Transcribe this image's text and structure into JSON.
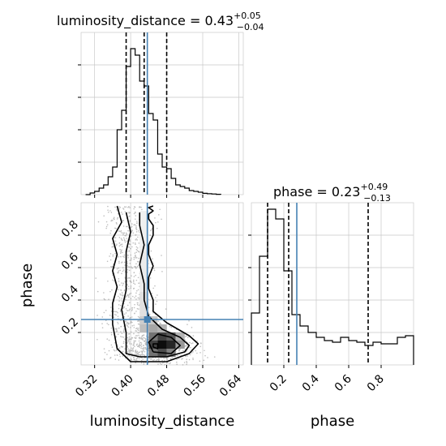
{
  "chart_data": {
    "type": "corner",
    "parameters": [
      "luminosity_distance",
      "phase"
    ],
    "truth_color": "#4682b4",
    "panels": [
      {
        "id": "hist-luminosity_distance",
        "type": "histogram",
        "title": {
          "prefix": "luminosity_distance = ",
          "value": "0.43",
          "plus": "+0.05",
          "minus": "−0.04"
        },
        "xlim": [
          0.29,
          0.65
        ],
        "ylim": [
          0,
          1.0
        ],
        "bin_edges": [
          0.3,
          0.31,
          0.32,
          0.33,
          0.34,
          0.35,
          0.36,
          0.37,
          0.38,
          0.39,
          0.4,
          0.41,
          0.42,
          0.43,
          0.44,
          0.45,
          0.46,
          0.47,
          0.48,
          0.49,
          0.5,
          0.51,
          0.52,
          0.53,
          0.54,
          0.55,
          0.56,
          0.57,
          0.58,
          0.59,
          0.6
        ],
        "counts": [
          0,
          0.01,
          0.02,
          0.04,
          0.06,
          0.11,
          0.17,
          0.4,
          0.52,
          0.79,
          0.9,
          0.86,
          0.7,
          0.67,
          0.5,
          0.46,
          0.25,
          0.17,
          0.16,
          0.1,
          0.06,
          0.05,
          0.04,
          0.025,
          0.02,
          0.015,
          0.008,
          0.006,
          0.004,
          0.002
        ],
        "quantiles": [
          0.39,
          0.43,
          0.48
        ],
        "truth": 0.437,
        "yticks": [
          0.2,
          0.4,
          0.6,
          0.8
        ]
      },
      {
        "id": "hist-phase",
        "type": "histogram",
        "title": {
          "prefix": "phase = ",
          "value": "0.23",
          "plus": "+0.49",
          "minus": "−0.13"
        },
        "xlim": [
          0.0,
          1.0
        ],
        "ylim": [
          0,
          1.0
        ],
        "bin_edges": [
          0.0,
          0.05,
          0.1,
          0.15,
          0.2,
          0.25,
          0.3,
          0.35,
          0.4,
          0.45,
          0.5,
          0.55,
          0.6,
          0.65,
          0.7,
          0.75,
          0.8,
          0.85,
          0.9,
          0.95,
          1.0
        ],
        "counts": [
          0.32,
          0.67,
          0.96,
          0.9,
          0.58,
          0.31,
          0.24,
          0.2,
          0.17,
          0.15,
          0.14,
          0.17,
          0.15,
          0.14,
          0.12,
          0.14,
          0.13,
          0.13,
          0.17,
          0.18
        ],
        "quantiles": [
          0.1,
          0.23,
          0.72
        ],
        "truth": 0.28,
        "yticks": [
          0.2,
          0.4,
          0.6,
          0.8
        ],
        "xticks": [
          0.2,
          0.4,
          0.6,
          0.8
        ],
        "xticklabels": [
          "0.2",
          "0.4",
          "0.6",
          "0.8"
        ],
        "xlabel": "phase"
      },
      {
        "id": "joint-luminosity_distance-phase",
        "type": "2d-density",
        "xlim": [
          0.29,
          0.65
        ],
        "ylim": [
          0.0,
          1.0
        ],
        "xticks": [
          0.32,
          0.4,
          0.48,
          0.56,
          0.64
        ],
        "xticklabels": [
          "0.32",
          "0.40",
          "0.48",
          "0.56",
          "0.64"
        ],
        "yticks": [
          0.2,
          0.4,
          0.6,
          0.8
        ],
        "yticklabels": [
          "0.2",
          "0.4",
          "0.6",
          "0.8"
        ],
        "xlabel": "luminosity_distance",
        "ylabel": "phase",
        "truth": [
          0.437,
          0.28
        ],
        "density_cells": [
          {
            "x": [
              0.44,
              0.46
            ],
            "y": [
              0.05,
              0.1
            ],
            "shade": 0.55
          },
          {
            "x": [
              0.46,
              0.48
            ],
            "y": [
              0.05,
              0.1
            ],
            "shade": 0.7
          },
          {
            "x": [
              0.48,
              0.5
            ],
            "y": [
              0.05,
              0.1
            ],
            "shade": 0.5
          },
          {
            "x": [
              0.44,
              0.46
            ],
            "y": [
              0.1,
              0.15
            ],
            "shade": 0.75
          },
          {
            "x": [
              0.46,
              0.48
            ],
            "y": [
              0.1,
              0.15
            ],
            "shade": 0.95
          },
          {
            "x": [
              0.48,
              0.5
            ],
            "y": [
              0.1,
              0.15
            ],
            "shade": 0.85
          },
          {
            "x": [
              0.5,
              0.52
            ],
            "y": [
              0.1,
              0.15
            ],
            "shade": 0.4
          },
          {
            "x": [
              0.44,
              0.46
            ],
            "y": [
              0.15,
              0.2
            ],
            "shade": 0.55
          },
          {
            "x": [
              0.46,
              0.48
            ],
            "y": [
              0.15,
              0.2
            ],
            "shade": 0.75
          },
          {
            "x": [
              0.48,
              0.5
            ],
            "y": [
              0.15,
              0.2
            ],
            "shade": 0.65
          },
          {
            "x": [
              0.5,
              0.52
            ],
            "y": [
              0.15,
              0.2
            ],
            "shade": 0.3
          },
          {
            "x": [
              0.42,
              0.44
            ],
            "y": [
              0.2,
              0.25
            ],
            "shade": 0.25
          },
          {
            "x": [
              0.44,
              0.46
            ],
            "y": [
              0.2,
              0.25
            ],
            "shade": 0.35
          },
          {
            "x": [
              0.46,
              0.48
            ],
            "y": [
              0.2,
              0.25
            ],
            "shade": 0.3
          },
          {
            "x": [
              0.42,
              0.44
            ],
            "y": [
              0.25,
              0.3
            ],
            "shade": 0.2
          },
          {
            "x": [
              0.44,
              0.46
            ],
            "y": [
              0.25,
              0.3
            ],
            "shade": 0.22
          },
          {
            "x": [
              0.42,
              0.44
            ],
            "y": [
              0.3,
              0.45
            ],
            "shade": 0.12
          },
          {
            "x": [
              0.42,
              0.44
            ],
            "y": [
              0.45,
              0.7
            ],
            "shade": 0.08
          },
          {
            "x": [
              0.42,
              0.44
            ],
            "y": [
              0.7,
              0.95
            ],
            "shade": 0.06
          }
        ],
        "contours": [
          {
            "level": "outer",
            "x": [
              0.37,
              0.38,
              0.36,
              0.37,
              0.36,
              0.37,
              0.36,
              0.36,
              0.37,
              0.4,
              0.48,
              0.53,
              0.55,
              0.53,
              0.48,
              0.45,
              0.45,
              0.44,
              0.44,
              0.45,
              0.44,
              0.44,
              0.45,
              0.45,
              0.44,
              0.44,
              0.45,
              0.44,
              0.45
            ],
            "y": [
              0.98,
              0.88,
              0.78,
              0.68,
              0.58,
              0.48,
              0.38,
              0.25,
              0.1,
              0.02,
              0.02,
              0.07,
              0.13,
              0.18,
              0.26,
              0.33,
              0.4,
              0.47,
              0.54,
              0.61,
              0.68,
              0.74,
              0.8,
              0.86,
              0.9,
              0.93,
              0.95,
              0.97,
              0.98
            ]
          },
          {
            "level": "middle",
            "x": [
              0.39,
              0.4,
              0.39,
              0.39,
              0.39,
              0.38,
              0.39,
              0.39,
              0.42,
              0.48,
              0.52,
              0.53,
              0.51,
              0.47,
              0.44,
              0.43,
              0.43,
              0.42,
              0.43,
              0.42,
              0.42
            ],
            "y": [
              0.94,
              0.82,
              0.7,
              0.58,
              0.46,
              0.34,
              0.2,
              0.07,
              0.05,
              0.05,
              0.08,
              0.12,
              0.17,
              0.22,
              0.3,
              0.4,
              0.5,
              0.62,
              0.74,
              0.86,
              0.94
            ]
          },
          {
            "level": "inner",
            "x": [
              0.45,
              0.49,
              0.51,
              0.49,
              0.46,
              0.44,
              0.45
            ],
            "y": [
              0.08,
              0.07,
              0.12,
              0.17,
              0.19,
              0.14,
              0.08
            ]
          },
          {
            "level": "inner-loop",
            "x": [
              0.45,
              0.46,
              0.46,
              0.45,
              0.45
            ],
            "y": [
              0.11,
              0.1,
              0.13,
              0.13,
              0.11
            ]
          }
        ]
      }
    ]
  }
}
